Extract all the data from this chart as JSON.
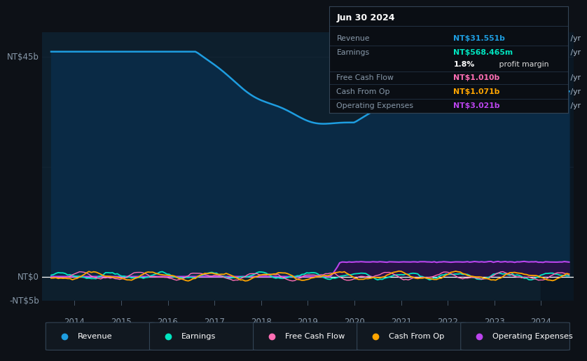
{
  "bg_color": "#0d1117",
  "plot_bg_color": "#0d1f2d",
  "y_label_top": "NT$45b",
  "y_label_zero": "NT$0",
  "y_label_neg": "-NT$5b",
  "ylim": [
    -5000000000.0,
    50000000000.0
  ],
  "revenue_color": "#1e9de0",
  "earnings_color": "#00e5c0",
  "fcf_color": "#ff6eb4",
  "cashfromop_color": "#ffa500",
  "opex_color": "#bb44ee",
  "revenue_fill_color": "#0a2a45",
  "opex_fill_color": "#2a1045",
  "zero_line_color": "#ffffff",
  "grid_line_color": "#152535",
  "tooltip": {
    "date": "Jun 30 2024",
    "rows": [
      {
        "label": "Revenue",
        "value": "NT$31.551b /yr",
        "color": "#1e9de0"
      },
      {
        "label": "Earnings",
        "value": "NT$568.465m /yr",
        "color": "#00e5c0"
      },
      {
        "label": "",
        "value": "1.8% profit margin",
        "color": "#dddddd"
      },
      {
        "label": "Free Cash Flow",
        "value": "NT$1.010b /yr",
        "color": "#ff6eb4"
      },
      {
        "label": "Cash From Op",
        "value": "NT$1.071b /yr",
        "color": "#ffa500"
      },
      {
        "label": "Operating Expenses",
        "value": "NT$3.021b /yr",
        "color": "#bb44ee"
      }
    ]
  },
  "legend": [
    {
      "label": "Revenue",
      "color": "#1e9de0"
    },
    {
      "label": "Earnings",
      "color": "#00e5c0"
    },
    {
      "label": "Free Cash Flow",
      "color": "#ff6eb4"
    },
    {
      "label": "Cash From Op",
      "color": "#ffa500"
    },
    {
      "label": "Operating Expenses",
      "color": "#bb44ee"
    }
  ],
  "xlabel_years": [
    2014,
    2015,
    2016,
    2017,
    2018,
    2019,
    2020,
    2021,
    2022,
    2023,
    2024
  ]
}
